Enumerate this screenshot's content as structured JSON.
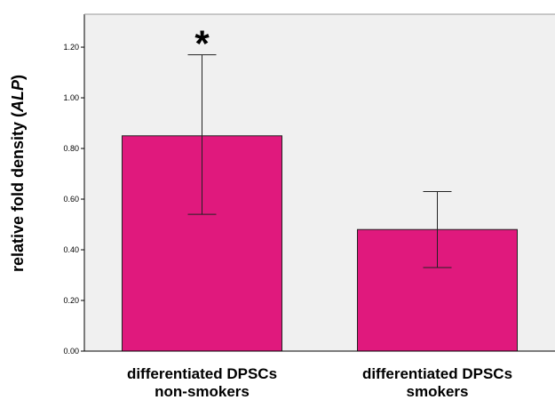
{
  "chart_data": {
    "type": "bar",
    "categories": [
      [
        "differentiated DPSCs",
        "non-smokers"
      ],
      [
        "differentiated DPSCs",
        "smokers"
      ]
    ],
    "values": [
      0.85,
      0.48
    ],
    "error_bars": [
      {
        "lower": 0.54,
        "upper": 1.17
      },
      {
        "lower": 0.33,
        "upper": 0.63
      }
    ],
    "annotations": [
      {
        "category_index": 0,
        "text": "*"
      }
    ],
    "ylabel": {
      "prefix": "relative fold density (",
      "italic": "ALP",
      "suffix": ")"
    },
    "ylim": [
      0,
      1.33
    ],
    "yticks": [
      "0.00",
      "0.20",
      "0.40",
      "0.60",
      "0.80",
      "1.00",
      "1.20"
    ],
    "grid": false,
    "colors": {
      "bar": "#e0197d",
      "plot_background": "#f0f0f0",
      "axis": "#000000"
    }
  }
}
